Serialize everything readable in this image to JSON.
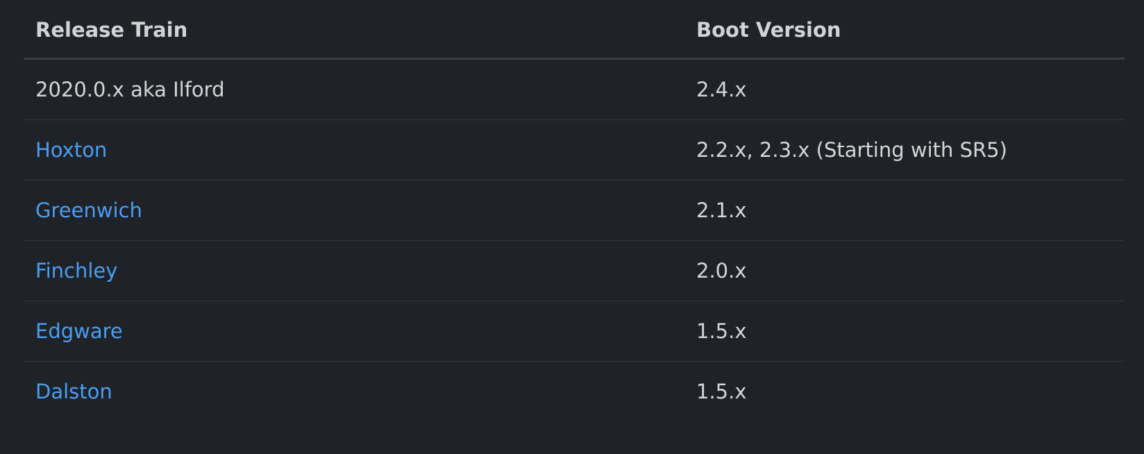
{
  "table": {
    "headers": {
      "release_train": "Release Train",
      "boot_version": "Boot Version"
    },
    "rows": [
      {
        "release_train": "2020.0.x aka Ilford",
        "is_link": false,
        "boot_version": "2.4.x"
      },
      {
        "release_train": "Hoxton",
        "is_link": true,
        "boot_version": "2.2.x, 2.3.x (Starting with SR5)"
      },
      {
        "release_train": "Greenwich",
        "is_link": true,
        "boot_version": "2.1.x"
      },
      {
        "release_train": "Finchley",
        "is_link": true,
        "boot_version": "2.0.x"
      },
      {
        "release_train": "Edgware",
        "is_link": true,
        "boot_version": "1.5.x"
      },
      {
        "release_train": "Dalston",
        "is_link": true,
        "boot_version": "1.5.x"
      }
    ]
  },
  "colors": {
    "background": "#1f2227",
    "text": "#d6d6d6",
    "link": "#4a9ef2",
    "row_divider": "#353940",
    "header_divider": "#3b3f45"
  }
}
